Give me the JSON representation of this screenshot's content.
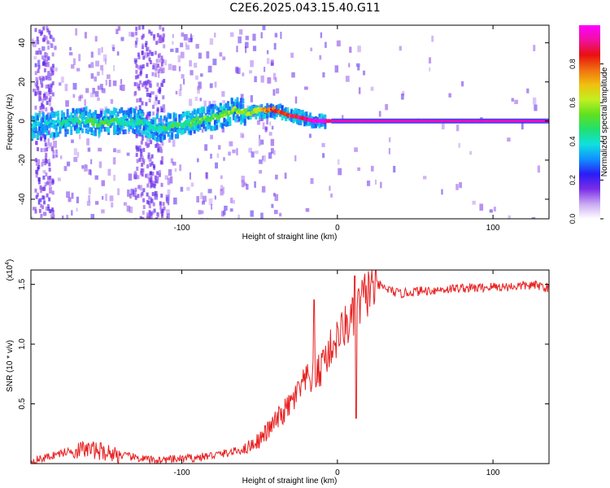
{
  "title": "C2E6.2025.043.15.40.G11",
  "chart_data": [
    {
      "type": "heatmap",
      "title": "C2E6.2025.043.15.40.G11",
      "xlabel": "Height of straight line (km)",
      "ylabel": "Frequency (Hz)",
      "xlim": [
        -197,
        136
      ],
      "ylim": [
        -50,
        49
      ],
      "xticks": [
        -100,
        0,
        100
      ],
      "yticks": [
        -40,
        -20,
        0,
        20,
        40
      ],
      "colorbar": {
        "label": "Normalized spectral amplitude",
        "range": [
          0,
          1
        ],
        "ticks": [
          0.0,
          0.2,
          0.4,
          0.6,
          0.8
        ],
        "colors": [
          "#ffffff",
          "#c9a8f2",
          "#7a2ee6",
          "#2a1cf5",
          "#1090ff",
          "#10e0e0",
          "#20e070",
          "#60e020",
          "#c0f020",
          "#f0c010",
          "#f07010",
          "#e81010",
          "#f010a0",
          "#ff00ff"
        ]
      },
      "ridge": {
        "x": [
          -197,
          -185,
          -175,
          -165,
          -155,
          -145,
          -135,
          -125,
          -115,
          -105,
          -95,
          -85,
          -75,
          -65,
          -58,
          -52,
          -45,
          -38,
          -32,
          -25,
          -20,
          -15,
          -10,
          -5,
          0,
          5,
          20,
          40,
          60,
          80,
          100,
          120,
          136
        ],
        "freq": [
          -3,
          -2,
          -1,
          1,
          -1,
          0,
          0,
          -1,
          -4,
          -2,
          -1,
          1,
          3,
          6,
          4,
          5,
          5,
          5,
          3,
          2,
          1,
          0,
          0,
          0,
          0,
          0,
          0,
          0,
          0,
          0,
          0,
          0,
          0
        ],
        "amplitude": [
          0.3,
          0.35,
          0.4,
          0.4,
          0.45,
          0.45,
          0.4,
          0.4,
          0.4,
          0.45,
          0.45,
          0.5,
          0.5,
          0.55,
          0.6,
          0.55,
          0.75,
          0.8,
          0.8,
          0.85,
          0.9,
          0.95,
          0.95,
          0.9,
          0.9,
          0.95,
          0.95,
          0.95,
          0.95,
          0.95,
          0.95,
          0.95,
          0.95
        ]
      }
    },
    {
      "type": "line",
      "xlabel": "Height of straight line (km)",
      "ylabel": "SNR (10 * v/v)",
      "ylabel_scale": "(x10",
      "ylabel_exponent": "4",
      "ylabel_scale_close": ")",
      "xlim": [
        -197,
        136
      ],
      "ylim": [
        0,
        1.62
      ],
      "xticks": [
        -100,
        0,
        100
      ],
      "yticks": [
        0.5,
        1.0,
        1.5
      ],
      "ytick_labels": [
        "0.5",
        "1.0",
        "1.5"
      ],
      "line_color": "#e82020",
      "series": [
        {
          "name": "SNR",
          "x": [
            -197,
            -190,
            -180,
            -170,
            -160,
            -150,
            -140,
            -130,
            -120,
            -110,
            -100,
            -90,
            -80,
            -70,
            -60,
            -50,
            -45,
            -40,
            -35,
            -30,
            -25,
            -20,
            -15,
            -10,
            -5,
            0,
            5,
            10,
            15,
            20,
            25,
            30,
            40,
            50,
            60,
            70,
            80,
            90,
            100,
            110,
            120,
            130,
            136
          ],
          "y": [
            0.02,
            0.04,
            0.08,
            0.11,
            0.12,
            0.1,
            0.07,
            0.05,
            0.03,
            0.03,
            0.04,
            0.05,
            0.07,
            0.09,
            0.12,
            0.2,
            0.27,
            0.35,
            0.42,
            0.5,
            0.6,
            0.7,
            0.72,
            0.8,
            0.95,
            1.05,
            1.15,
            1.2,
            1.35,
            1.45,
            1.5,
            1.47,
            1.42,
            1.44,
            1.45,
            1.46,
            1.47,
            1.47,
            1.48,
            1.48,
            1.49,
            1.49,
            1.47
          ]
        }
      ],
      "spikes": [
        {
          "x": -15,
          "y": 1.37
        },
        {
          "x": -9,
          "y": 0.95
        },
        {
          "x": 11,
          "y": 1.57
        },
        {
          "x": 12,
          "y": 0.38
        }
      ]
    }
  ]
}
